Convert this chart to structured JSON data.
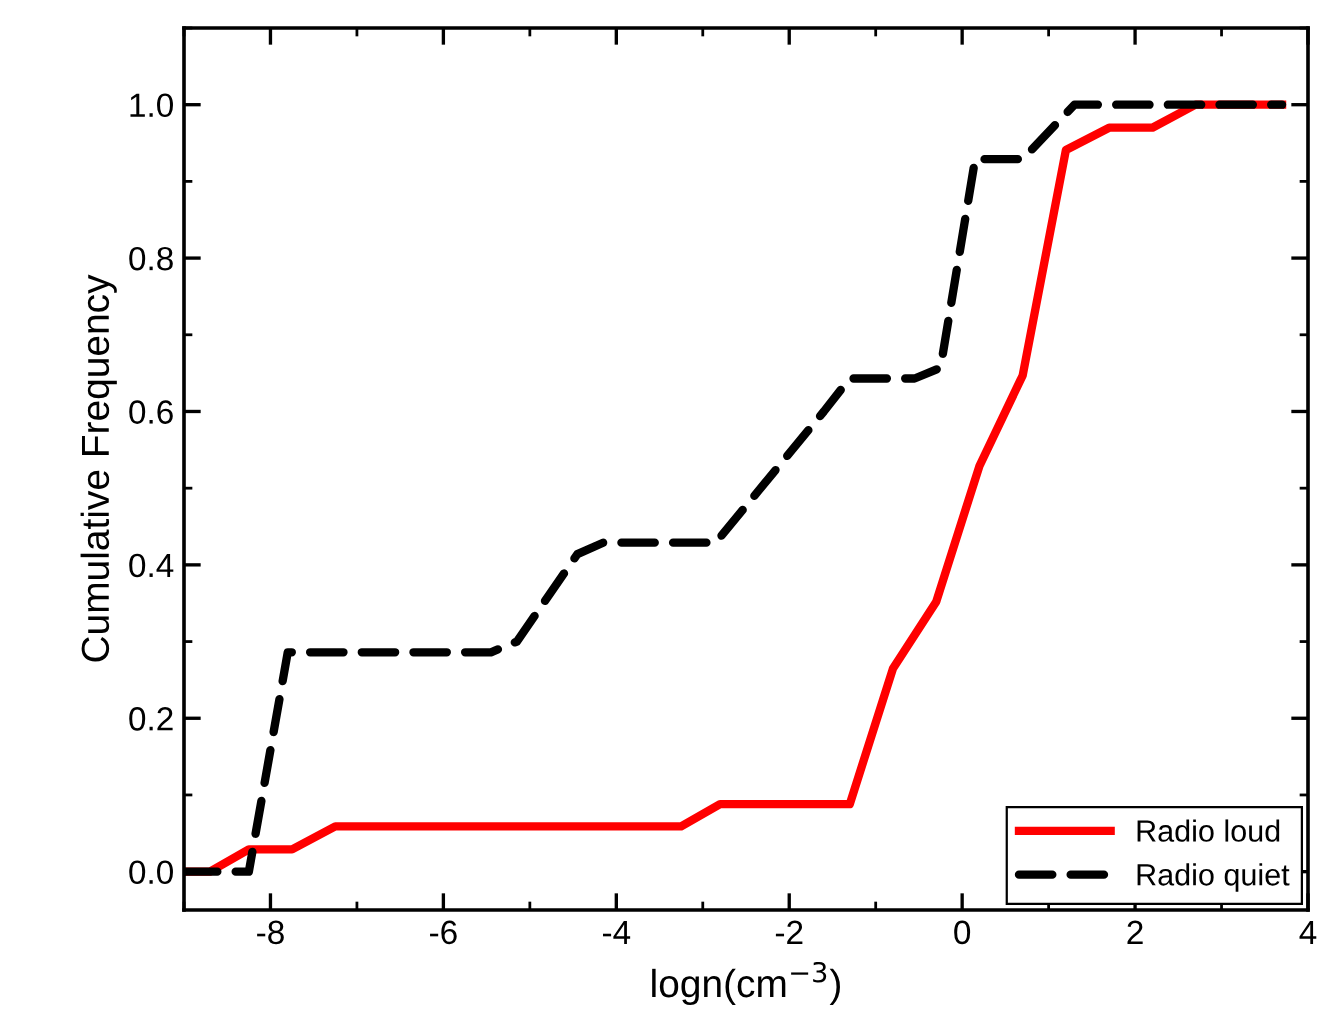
{
  "chart_data": {
    "type": "line",
    "xlabel": "logn(cm$^{−3}$)",
    "ylabel": "Cumulative Frequency",
    "xlim": [
      -9,
      4
    ],
    "xticks": [
      -8,
      -6,
      -4,
      -2,
      0,
      2,
      4
    ],
    "ylim": [
      -0.05,
      1.1
    ],
    "yticks": [
      {
        "value": 0,
        "label": "0.0"
      },
      {
        "value": 0.2,
        "label": "0.2"
      },
      {
        "value": 0.4,
        "label": "0.4"
      },
      {
        "value": 0.6,
        "label": "0.6"
      },
      {
        "value": 0.8,
        "label": "0.8"
      },
      {
        "value": 1,
        "label": "1.0"
      }
    ],
    "grid": false,
    "legend": "bottom right",
    "series": [
      {
        "name": "Radio loud",
        "color": "#ff0000",
        "line_style": "solid",
        "x": [
          -9,
          -8.7,
          -8.25,
          -7.75,
          -7.25,
          -3.25,
          -2.8,
          -1.3,
          -0.8,
          -0.3,
          0.2,
          0.7,
          1.2,
          1.7,
          2.2,
          2.7,
          3.7
        ],
        "values": [
          0,
          0,
          0.029,
          0.029,
          0.059,
          0.059,
          0.088,
          0.088,
          0.265,
          0.352,
          0.529,
          0.647,
          0.941,
          0.97,
          0.97,
          1,
          1
        ]
      },
      {
        "name": "Radio quiet",
        "color": "#000000",
        "line_style": "dashed",
        "x": [
          -9,
          -8.25,
          -7.8,
          -5.45,
          -5.15,
          -4.45,
          -4.15,
          -2.85,
          -1.6,
          -1.3,
          -0.55,
          -0.25,
          0.15,
          0.7,
          1.3,
          3.7
        ],
        "values": [
          0,
          0,
          0.286,
          0.286,
          0.3,
          0.414,
          0.429,
          0.429,
          0.6,
          0.643,
          0.643,
          0.657,
          0.929,
          0.929,
          1,
          1
        ]
      }
    ]
  }
}
